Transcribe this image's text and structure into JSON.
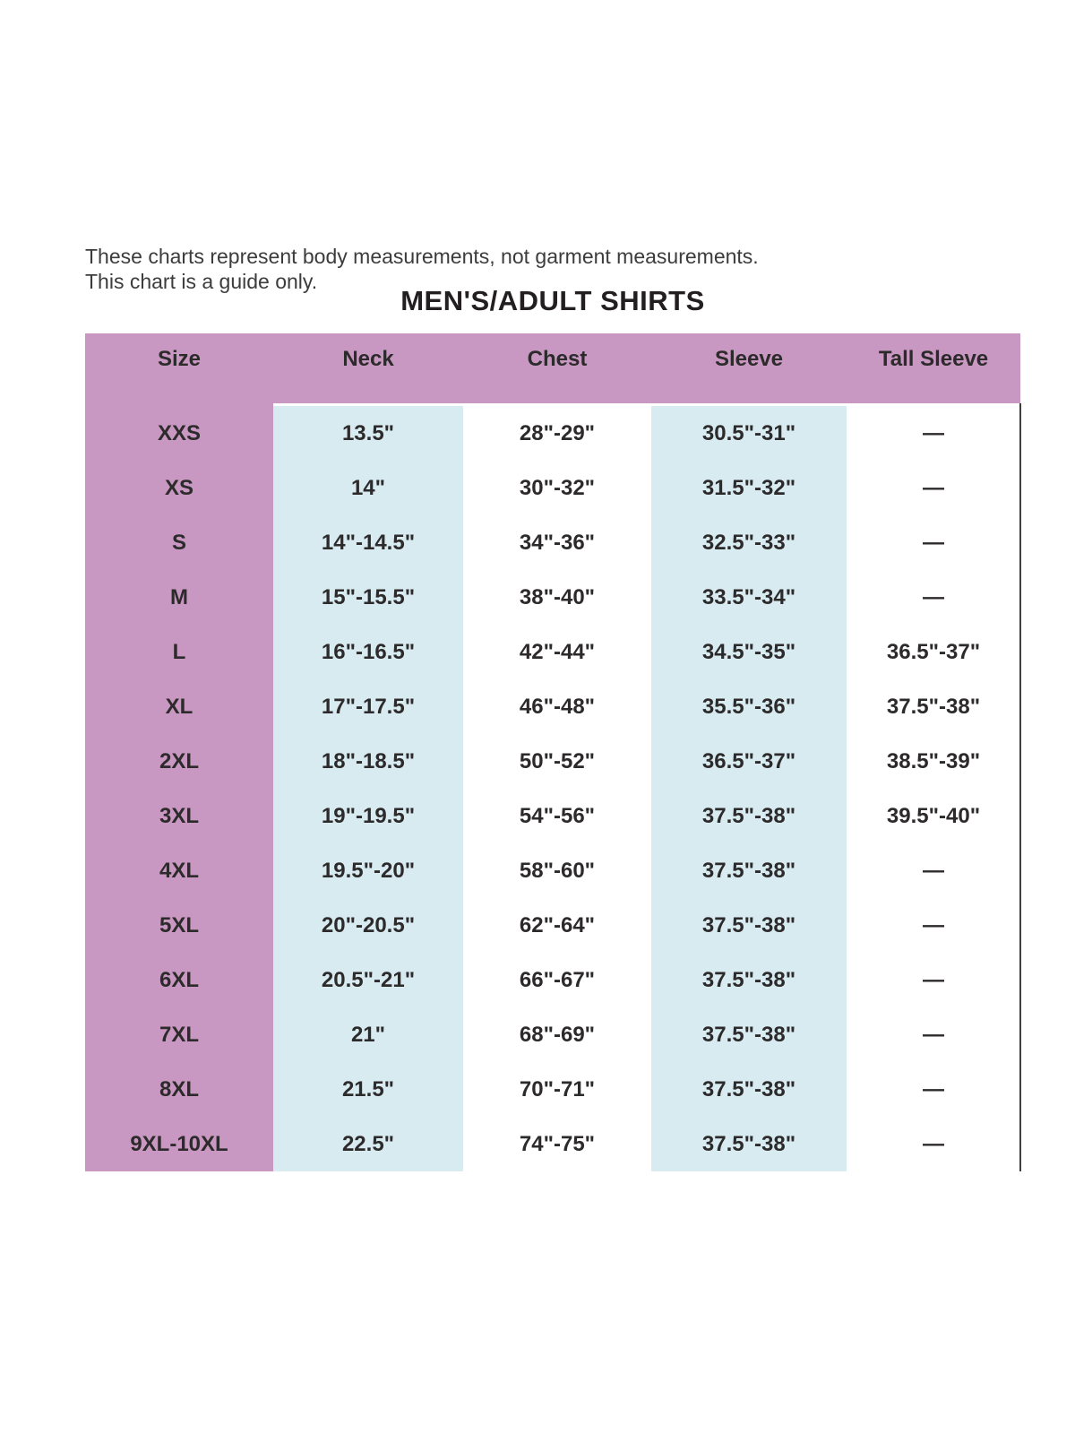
{
  "intro": {
    "line1": "These charts represent body measurements, not garment measurements.",
    "line2": "This chart is a guide only."
  },
  "title": "MEN'S/ADULT SHIRTS",
  "table": {
    "columns": [
      "Size",
      "Neck",
      "Chest",
      "Sleeve",
      "Tall Sleeve"
    ],
    "rows": [
      {
        "size": "XXS",
        "neck": "13.5\"",
        "chest": "28\"-29\"",
        "sleeve": "30.5\"-31\"",
        "tall_sleeve": "—"
      },
      {
        "size": "XS",
        "neck": "14\"",
        "chest": "30\"-32\"",
        "sleeve": "31.5\"-32\"",
        "tall_sleeve": "—"
      },
      {
        "size": "S",
        "neck": "14\"-14.5\"",
        "chest": "34\"-36\"",
        "sleeve": "32.5\"-33\"",
        "tall_sleeve": "—"
      },
      {
        "size": "M",
        "neck": "15\"-15.5\"",
        "chest": "38\"-40\"",
        "sleeve": "33.5\"-34\"",
        "tall_sleeve": "—"
      },
      {
        "size": "L",
        "neck": "16\"-16.5\"",
        "chest": "42\"-44\"",
        "sleeve": "34.5\"-35\"",
        "tall_sleeve": "36.5\"-37\""
      },
      {
        "size": "XL",
        "neck": "17\"-17.5\"",
        "chest": "46\"-48\"",
        "sleeve": "35.5\"-36\"",
        "tall_sleeve": "37.5\"-38\""
      },
      {
        "size": "2XL",
        "neck": "18\"-18.5\"",
        "chest": "50\"-52\"",
        "sleeve": "36.5\"-37\"",
        "tall_sleeve": "38.5\"-39\""
      },
      {
        "size": "3XL",
        "neck": "19\"-19.5\"",
        "chest": "54\"-56\"",
        "sleeve": "37.5\"-38\"",
        "tall_sleeve": "39.5\"-40\""
      },
      {
        "size": "4XL",
        "neck": "19.5\"-20\"",
        "chest": "58\"-60\"",
        "sleeve": "37.5\"-38\"",
        "tall_sleeve": "—"
      },
      {
        "size": "5XL",
        "neck": "20\"-20.5\"",
        "chest": "62\"-64\"",
        "sleeve": "37.5\"-38\"",
        "tall_sleeve": "—"
      },
      {
        "size": "6XL",
        "neck": "20.5\"-21\"",
        "chest": "66\"-67\"",
        "sleeve": "37.5\"-38\"",
        "tall_sleeve": "—"
      },
      {
        "size": "7XL",
        "neck": "21\"",
        "chest": "68\"-69\"",
        "sleeve": "37.5\"-38\"",
        "tall_sleeve": "—"
      },
      {
        "size": "8XL",
        "neck": "21.5\"",
        "chest": "70\"-71\"",
        "sleeve": "37.5\"-38\"",
        "tall_sleeve": "—"
      },
      {
        "size": "9XL-10XL",
        "neck": "22.5\"",
        "chest": "74\"-75\"",
        "sleeve": "37.5\"-38\"",
        "tall_sleeve": "—"
      }
    ]
  },
  "colors": {
    "page_bg": "#ffffff",
    "header_bg": "#c998c2",
    "size_column_bg": "#c998c2",
    "highlight_column_bg": "#d7ebf1",
    "text": "#2d2a2b",
    "intro_text": "#3c3c3c",
    "right_border": "#3f3f3f"
  }
}
